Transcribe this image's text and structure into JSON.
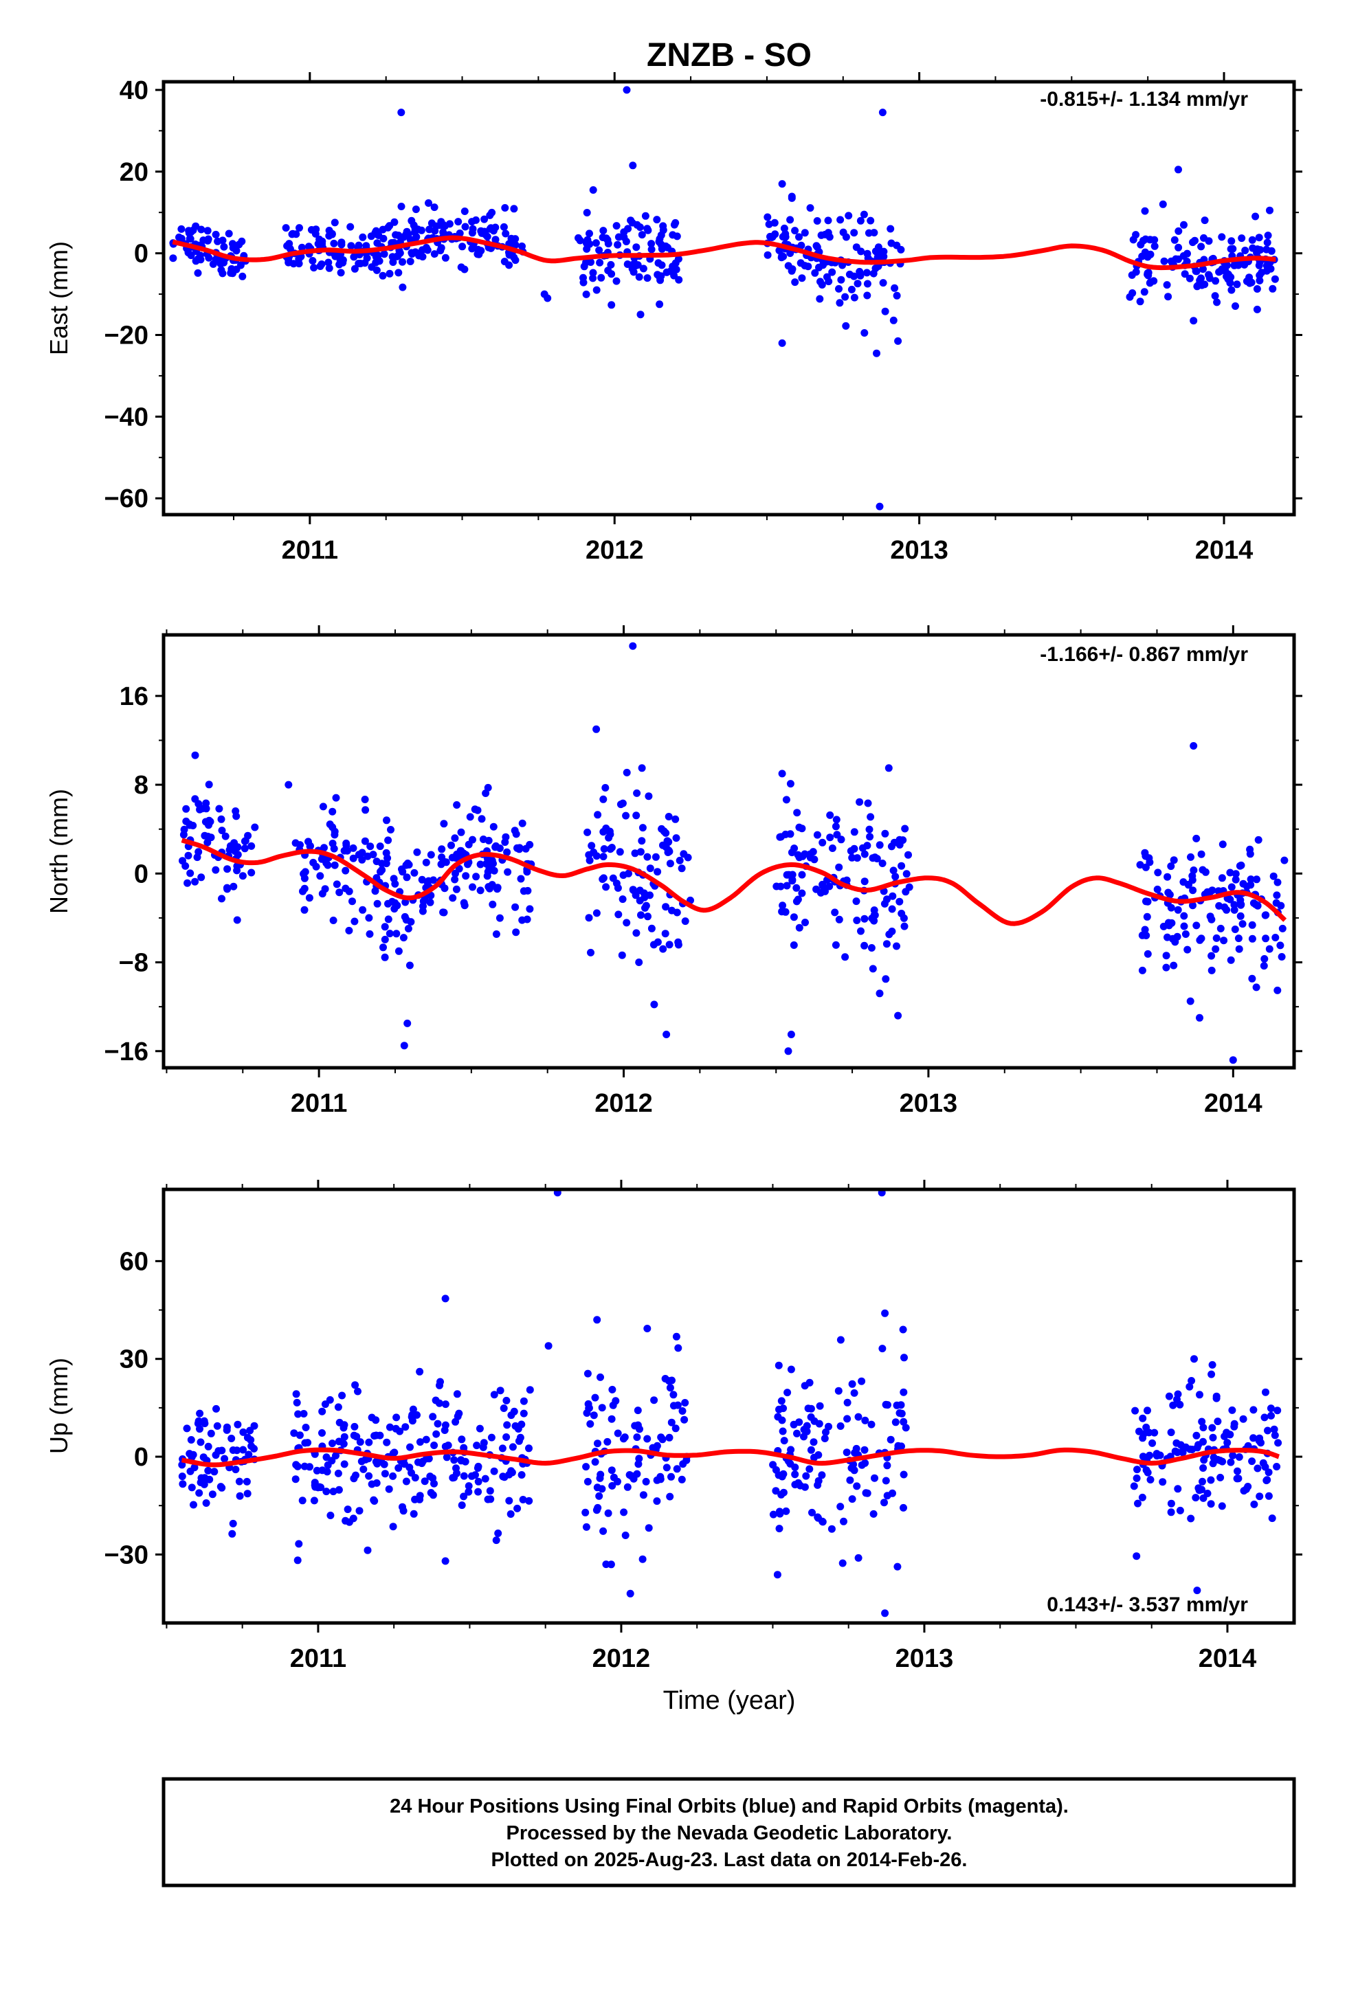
{
  "title": "ZNZB - SO",
  "colors": {
    "final_orbits": "#0000ff",
    "model": "#ff0000",
    "frame": "#000000"
  },
  "chart_data": [
    {
      "type": "scatter",
      "panel": "east",
      "ylabel": "East (mm)",
      "xlabel": "",
      "rate_label": "-0.815+/- 1.134 mm/yr",
      "rate_placement": "top-right",
      "xlim": [
        2010.52,
        2014.23
      ],
      "ylim": [
        -64,
        42
      ],
      "yticks": [
        40,
        20,
        0,
        -20,
        -40,
        -60
      ],
      "ytick_labels": [
        "40",
        "20",
        "0",
        "−20",
        "−40",
        "−60"
      ],
      "xticks": [
        2011,
        2012,
        2013,
        2014
      ],
      "xtick_labels": [
        "2011",
        "2012",
        "2013",
        "2014"
      ],
      "gaps": [
        [
          2011.72,
          2011.88
        ],
        [
          2012.23,
          2012.5
        ],
        [
          2012.94,
          2013.69
        ]
      ],
      "segments": [
        [
          2010.55,
          2010.79,
          2.0,
          2.8
        ],
        [
          2010.92,
          2011.3,
          1.0,
          3.0
        ],
        [
          2011.3,
          2011.7,
          3.0,
          3.2
        ],
        [
          2011.88,
          2012.22,
          0.0,
          5.0
        ],
        [
          2012.5,
          2012.94,
          -1.5,
          5.5
        ],
        [
          2013.69,
          2014.17,
          -2.0,
          4.5
        ]
      ],
      "outliers": [
        [
          2011.3,
          34.5
        ],
        [
          2012.04,
          40.0
        ],
        [
          2012.06,
          21.5
        ],
        [
          2011.93,
          15.5
        ],
        [
          2012.88,
          34.5
        ],
        [
          2012.55,
          17.0
        ],
        [
          2013.85,
          20.5
        ],
        [
          2012.87,
          -62.0
        ],
        [
          2012.86,
          -24.5
        ],
        [
          2012.82,
          -19.5
        ],
        [
          2012.55,
          -22.0
        ],
        [
          2012.93,
          -21.5
        ],
        [
          2013.8,
          12.0
        ],
        [
          2011.77,
          -10.0
        ],
        [
          2011.78,
          -11.0
        ],
        [
          2013.9,
          -16.5
        ],
        [
          2012.84,
          8.0
        ],
        [
          2014.15,
          10.5
        ]
      ],
      "model": {
        "points": [
          [
            2010.55,
            2.8
          ],
          [
            2010.65,
            1.0
          ],
          [
            2010.75,
            -1.2
          ],
          [
            2010.85,
            -1.5
          ],
          [
            2010.95,
            0.0
          ],
          [
            2011.05,
            0.8
          ],
          [
            2011.15,
            0.5
          ],
          [
            2011.25,
            1.2
          ],
          [
            2011.35,
            2.5
          ],
          [
            2011.47,
            3.8
          ],
          [
            2011.58,
            2.5
          ],
          [
            2011.68,
            0.6
          ],
          [
            2011.78,
            -1.8
          ],
          [
            2011.88,
            -1.2
          ],
          [
            2011.98,
            -0.6
          ],
          [
            2012.1,
            -0.5
          ],
          [
            2012.2,
            -0.3
          ],
          [
            2012.3,
            0.8
          ],
          [
            2012.42,
            2.4
          ],
          [
            2012.5,
            2.5
          ],
          [
            2012.6,
            0.8
          ],
          [
            2012.7,
            -1.2
          ],
          [
            2012.82,
            -2.2
          ],
          [
            2012.95,
            -1.8
          ],
          [
            2013.05,
            -1.0
          ],
          [
            2013.2,
            -1.0
          ],
          [
            2013.3,
            -0.6
          ],
          [
            2013.4,
            0.6
          ],
          [
            2013.5,
            1.8
          ],
          [
            2013.6,
            0.8
          ],
          [
            2013.7,
            -2.2
          ],
          [
            2013.78,
            -3.5
          ],
          [
            2013.9,
            -3.0
          ],
          [
            2014.0,
            -1.8
          ],
          [
            2014.1,
            -1.2
          ],
          [
            2014.17,
            -1.5
          ]
        ]
      }
    },
    {
      "type": "scatter",
      "panel": "north",
      "ylabel": "North (mm)",
      "xlabel": "",
      "rate_label": "-1.166+/- 0.867 mm/yr",
      "rate_placement": "top-right",
      "xlim": [
        2010.49,
        2014.2
      ],
      "ylim": [
        -17.5,
        21.5
      ],
      "yticks": [
        16,
        8,
        0,
        -8,
        -16
      ],
      "ytick_labels": [
        "16",
        "8",
        "0",
        "−8",
        "−16"
      ],
      "xticks": [
        2011,
        2012,
        2013,
        2014
      ],
      "xtick_labels": [
        "2011",
        "2012",
        "2013",
        "2014"
      ],
      "gaps": [
        [
          2011.72,
          2011.88
        ],
        [
          2012.23,
          2012.5
        ],
        [
          2012.94,
          2013.69
        ]
      ],
      "segments": [
        [
          2010.55,
          2010.79,
          1.5,
          2.4
        ],
        [
          2010.92,
          2011.3,
          -0.8,
          2.8
        ],
        [
          2011.3,
          2011.7,
          0.5,
          2.5
        ],
        [
          2011.88,
          2012.22,
          -1.0,
          4.0
        ],
        [
          2012.5,
          2012.94,
          -0.5,
          3.5
        ],
        [
          2013.69,
          2014.17,
          -2.2,
          2.8
        ]
      ],
      "outliers": [
        [
          2012.03,
          20.5
        ],
        [
          2011.91,
          13.0
        ],
        [
          2012.06,
          9.5
        ],
        [
          2012.87,
          9.5
        ],
        [
          2013.87,
          11.5
        ],
        [
          2012.52,
          9.0
        ],
        [
          2010.9,
          8.0
        ],
        [
          2011.29,
          -13.5
        ],
        [
          2011.28,
          -15.5
        ],
        [
          2012.55,
          -14.5
        ],
        [
          2012.54,
          -16.0
        ],
        [
          2012.14,
          -14.5
        ],
        [
          2012.1,
          -11.8
        ],
        [
          2012.84,
          -10.8
        ],
        [
          2012.9,
          -12.8
        ],
        [
          2013.89,
          -13.0
        ],
        [
          2013.86,
          -11.5
        ],
        [
          2014.0,
          -16.8
        ],
        [
          2012.05,
          -8.0
        ],
        [
          2012.86,
          -9.5
        ]
      ],
      "model": {
        "points": [
          [
            2010.55,
            3.0
          ],
          [
            2010.62,
            2.4
          ],
          [
            2010.72,
            1.2
          ],
          [
            2010.8,
            1.0
          ],
          [
            2010.88,
            1.6
          ],
          [
            2010.97,
            2.0
          ],
          [
            2011.05,
            1.5
          ],
          [
            2011.15,
            -0.2
          ],
          [
            2011.22,
            -1.5
          ],
          [
            2011.3,
            -2.2
          ],
          [
            2011.38,
            -1.2
          ],
          [
            2011.45,
            0.8
          ],
          [
            2011.53,
            1.7
          ],
          [
            2011.62,
            1.4
          ],
          [
            2011.72,
            0.3
          ],
          [
            2011.8,
            -0.2
          ],
          [
            2011.88,
            0.4
          ],
          [
            2011.95,
            0.8
          ],
          [
            2012.03,
            0.4
          ],
          [
            2012.12,
            -1.0
          ],
          [
            2012.2,
            -2.6
          ],
          [
            2012.27,
            -3.3
          ],
          [
            2012.35,
            -2.2
          ],
          [
            2012.45,
            0.0
          ],
          [
            2012.55,
            0.8
          ],
          [
            2012.65,
            0.1
          ],
          [
            2012.72,
            -1.0
          ],
          [
            2012.8,
            -1.5
          ],
          [
            2012.9,
            -0.8
          ],
          [
            2013.0,
            -0.4
          ],
          [
            2013.08,
            -0.9
          ],
          [
            2013.17,
            -2.8
          ],
          [
            2013.27,
            -4.5
          ],
          [
            2013.37,
            -3.5
          ],
          [
            2013.47,
            -1.2
          ],
          [
            2013.55,
            -0.4
          ],
          [
            2013.63,
            -0.9
          ],
          [
            2013.72,
            -1.8
          ],
          [
            2013.82,
            -2.5
          ],
          [
            2013.92,
            -2.2
          ],
          [
            2014.02,
            -1.7
          ],
          [
            2014.1,
            -2.5
          ],
          [
            2014.17,
            -4.2
          ]
        ]
      }
    },
    {
      "type": "scatter",
      "panel": "up",
      "ylabel": "Up (mm)",
      "xlabel": "Time (year)",
      "rate_label": "0.143+/- 3.537 mm/yr",
      "rate_placement": "bottom-right",
      "xlim": [
        2010.49,
        2014.22
      ],
      "ylim": [
        -51,
        82
      ],
      "yticks": [
        60,
        30,
        0,
        -30
      ],
      "ytick_labels": [
        "60",
        "30",
        "0",
        "−30"
      ],
      "xticks": [
        2011,
        2012,
        2013,
        2014
      ],
      "xtick_labels": [
        "2011",
        "2012",
        "2013",
        "2014"
      ],
      "gaps": [
        [
          2011.72,
          2011.88
        ],
        [
          2012.23,
          2012.5
        ],
        [
          2012.94,
          2013.69
        ]
      ],
      "segments": [
        [
          2010.55,
          2010.79,
          -3.0,
          8.0
        ],
        [
          2010.92,
          2011.3,
          0.0,
          10.0
        ],
        [
          2011.3,
          2011.7,
          0.0,
          11.0
        ],
        [
          2011.88,
          2012.22,
          0.0,
          14.0
        ],
        [
          2012.5,
          2012.94,
          -1.0,
          15.0
        ],
        [
          2013.69,
          2014.17,
          0.0,
          11.0
        ]
      ],
      "outliers": [
        [
          2011.79,
          81.0
        ],
        [
          2012.86,
          81.0
        ],
        [
          2011.42,
          48.5
        ],
        [
          2011.76,
          34.0
        ],
        [
          2011.92,
          42.0
        ],
        [
          2012.87,
          44.0
        ],
        [
          2012.93,
          39.0
        ],
        [
          2012.03,
          -42.0
        ],
        [
          2011.95,
          -33.0
        ],
        [
          2012.87,
          -48.0
        ],
        [
          2013.9,
          -41.0
        ],
        [
          2013.7,
          -30.5
        ],
        [
          2011.42,
          -32.0
        ],
        [
          2012.52,
          28.0
        ],
        [
          2013.89,
          30.0
        ]
      ],
      "model": {
        "points": [
          [
            2010.55,
            -1.0
          ],
          [
            2010.65,
            -2.5
          ],
          [
            2010.75,
            -1.5
          ],
          [
            2010.85,
            0.0
          ],
          [
            2010.95,
            1.8
          ],
          [
            2011.05,
            2.0
          ],
          [
            2011.15,
            0.8
          ],
          [
            2011.25,
            -0.5
          ],
          [
            2011.35,
            0.8
          ],
          [
            2011.45,
            1.5
          ],
          [
            2011.55,
            0.5
          ],
          [
            2011.65,
            -0.8
          ],
          [
            2011.75,
            -2.0
          ],
          [
            2011.85,
            -0.5
          ],
          [
            2011.95,
            1.5
          ],
          [
            2012.05,
            1.8
          ],
          [
            2012.15,
            0.5
          ],
          [
            2012.25,
            0.5
          ],
          [
            2012.35,
            1.5
          ],
          [
            2012.45,
            1.5
          ],
          [
            2012.55,
            0.0
          ],
          [
            2012.65,
            -2.0
          ],
          [
            2012.75,
            -1.0
          ],
          [
            2012.85,
            0.5
          ],
          [
            2012.95,
            1.8
          ],
          [
            2013.05,
            1.8
          ],
          [
            2013.15,
            0.5
          ],
          [
            2013.25,
            0.0
          ],
          [
            2013.35,
            0.5
          ],
          [
            2013.45,
            2.0
          ],
          [
            2013.55,
            1.5
          ],
          [
            2013.65,
            -0.5
          ],
          [
            2013.75,
            -2.0
          ],
          [
            2013.85,
            -0.5
          ],
          [
            2013.95,
            1.5
          ],
          [
            2014.05,
            2.0
          ],
          [
            2014.12,
            1.5
          ],
          [
            2014.17,
            0.0
          ]
        ]
      }
    }
  ],
  "footer": {
    "line1": "24 Hour Positions Using Final Orbits (blue) and Rapid Orbits (magenta).",
    "line2": "Processed by the Nevada Geodetic Laboratory.",
    "line3": "Plotted on 2025-Aug-23. Last data on 2014-Feb-26."
  }
}
